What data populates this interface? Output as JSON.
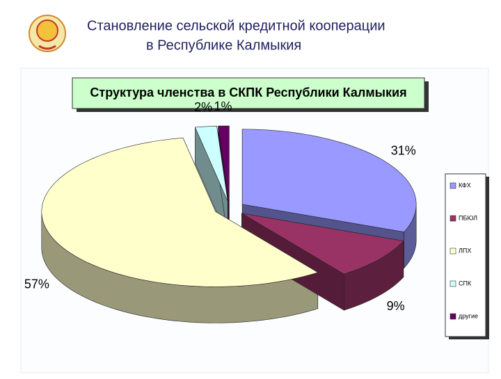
{
  "header": {
    "title_lines": [
      "Становление сельской кредитной кооперации",
      "в Республике Калмыкия"
    ]
  },
  "chart_data": {
    "type": "pie",
    "title": "Структура членства в СКПК Республики Калмыкия",
    "categories": [
      "КФХ",
      "ПБЮЛ",
      "ЛПХ",
      "СПК",
      "другие"
    ],
    "values": [
      31,
      9,
      57,
      2,
      1
    ],
    "value_labels": [
      "31%",
      "9%",
      "57%",
      "2%",
      "1%"
    ],
    "colors": [
      "#9999ff",
      "#993366",
      "#ffffcc",
      "#ccffff",
      "#660066"
    ],
    "legend": "right"
  }
}
